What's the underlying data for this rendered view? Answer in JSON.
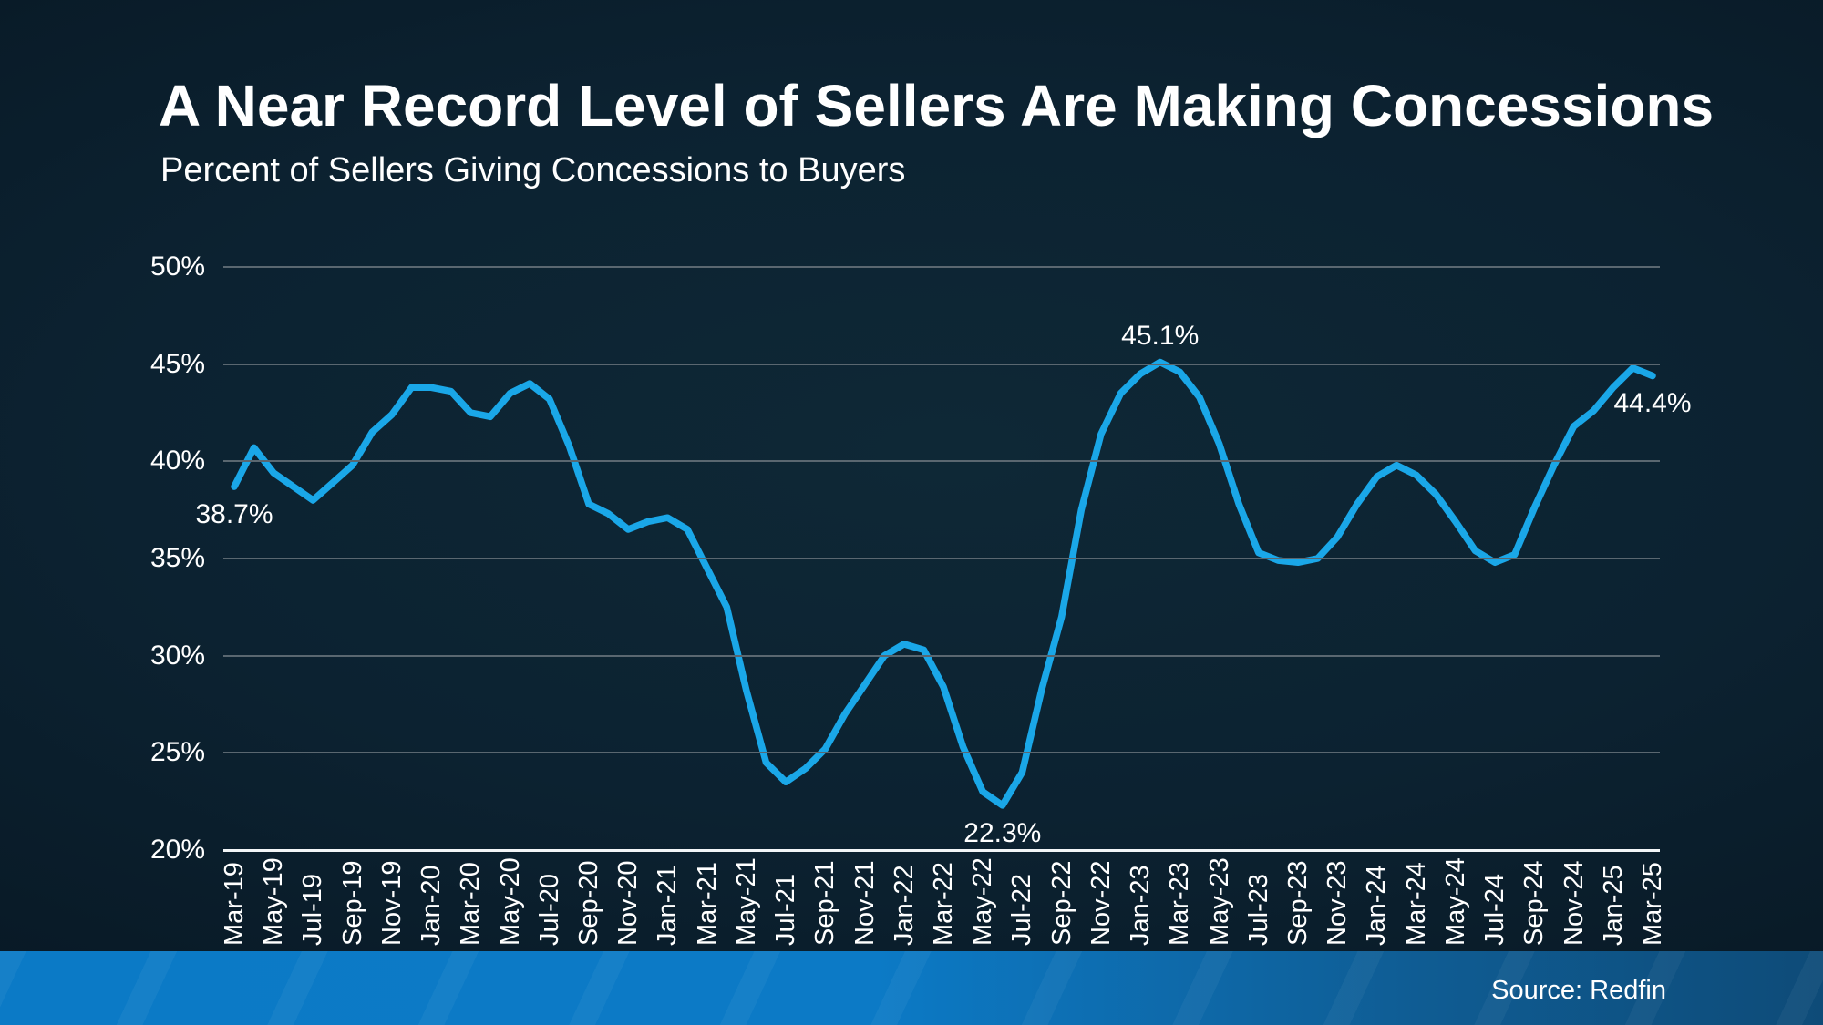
{
  "slide": {
    "title": "A Near Record Level of Sellers Are Making Concessions",
    "subtitle": "Percent of Sellers Giving Concessions to Buyers",
    "source": "Source: Redfin"
  },
  "chart_data": {
    "type": "line",
    "title": "A Near Record Level of Sellers Are Making Concessions",
    "subtitle": "Percent of Sellers Giving Concessions to Buyers",
    "series_name": "Percent of sellers giving concessions to buyers",
    "unit": "%",
    "ylim": [
      20,
      50
    ],
    "grid": "horizontal",
    "legend": "none",
    "x_tick_step": 2,
    "x": [
      "Mar-19",
      "Apr-19",
      "May-19",
      "Jun-19",
      "Jul-19",
      "Aug-19",
      "Sep-19",
      "Oct-19",
      "Nov-19",
      "Dec-19",
      "Jan-20",
      "Feb-20",
      "Mar-20",
      "Apr-20",
      "May-20",
      "Jun-20",
      "Jul-20",
      "Aug-20",
      "Sep-20",
      "Oct-20",
      "Nov-20",
      "Dec-20",
      "Jan-21",
      "Feb-21",
      "Mar-21",
      "Apr-21",
      "May-21",
      "Jun-21",
      "Jul-21",
      "Aug-21",
      "Sep-21",
      "Oct-21",
      "Nov-21",
      "Dec-21",
      "Jan-22",
      "Feb-22",
      "Mar-22",
      "Apr-22",
      "May-22",
      "Jun-22",
      "Jul-22",
      "Aug-22",
      "Sep-22",
      "Oct-22",
      "Nov-22",
      "Dec-22",
      "Jan-23",
      "Feb-23",
      "Mar-23",
      "Apr-23",
      "May-23",
      "Jun-23",
      "Jul-23",
      "Aug-23",
      "Sep-23",
      "Oct-23",
      "Nov-23",
      "Dec-23",
      "Jan-24",
      "Feb-24",
      "Mar-24",
      "Apr-24",
      "May-24",
      "Jun-24",
      "Jul-24",
      "Aug-24",
      "Sep-24",
      "Oct-24",
      "Nov-24",
      "Dec-24",
      "Jan-25",
      "Feb-25",
      "Mar-25"
    ],
    "values": [
      38.7,
      40.7,
      39.4,
      38.7,
      38.0,
      38.9,
      39.8,
      41.5,
      42.4,
      43.8,
      43.8,
      43.6,
      42.5,
      42.3,
      43.5,
      44.0,
      43.2,
      40.8,
      37.8,
      37.3,
      36.5,
      36.9,
      37.1,
      36.5,
      34.5,
      32.5,
      28.2,
      24.5,
      23.5,
      24.2,
      25.2,
      27.0,
      28.5,
      30.0,
      30.6,
      30.3,
      28.4,
      25.3,
      23.0,
      22.3,
      24.0,
      28.3,
      32.0,
      37.5,
      41.4,
      43.5,
      44.5,
      45.1,
      44.6,
      43.3,
      40.9,
      37.8,
      35.3,
      34.9,
      34.8,
      35.0,
      36.1,
      37.8,
      39.2,
      39.8,
      39.3,
      38.3,
      36.9,
      35.4,
      34.8,
      35.2,
      37.6,
      39.8,
      41.8,
      42.6,
      43.8,
      44.8,
      44.4
    ],
    "y_ticks": [
      {
        "v": 50,
        "label": "50%"
      },
      {
        "v": 45,
        "label": "45%"
      },
      {
        "v": 40,
        "label": "40%"
      },
      {
        "v": 35,
        "label": "35%"
      },
      {
        "v": 30,
        "label": "30%"
      },
      {
        "v": 25,
        "label": "25%"
      },
      {
        "v": 20,
        "label": "20%"
      }
    ],
    "annotations": [
      {
        "x": "Mar-19",
        "value": 38.7,
        "label": "38.7%",
        "position": "below"
      },
      {
        "x": "Jun-22",
        "value": 22.3,
        "label": "22.3%",
        "position": "below"
      },
      {
        "x": "Feb-23",
        "value": 45.1,
        "label": "45.1%",
        "position": "above"
      },
      {
        "x": "Mar-25",
        "value": 44.4,
        "label": "44.4%",
        "position": "below"
      }
    ]
  },
  "colors": {
    "line": "#1aa7e8",
    "gridline": "#5a6770",
    "axis_line": "#f2f5f7",
    "text": "#ffffff",
    "background_center": "#0e2836",
    "background_edge": "#061420",
    "band_left": "#0b7ac6",
    "band_right": "#0e4b78"
  }
}
